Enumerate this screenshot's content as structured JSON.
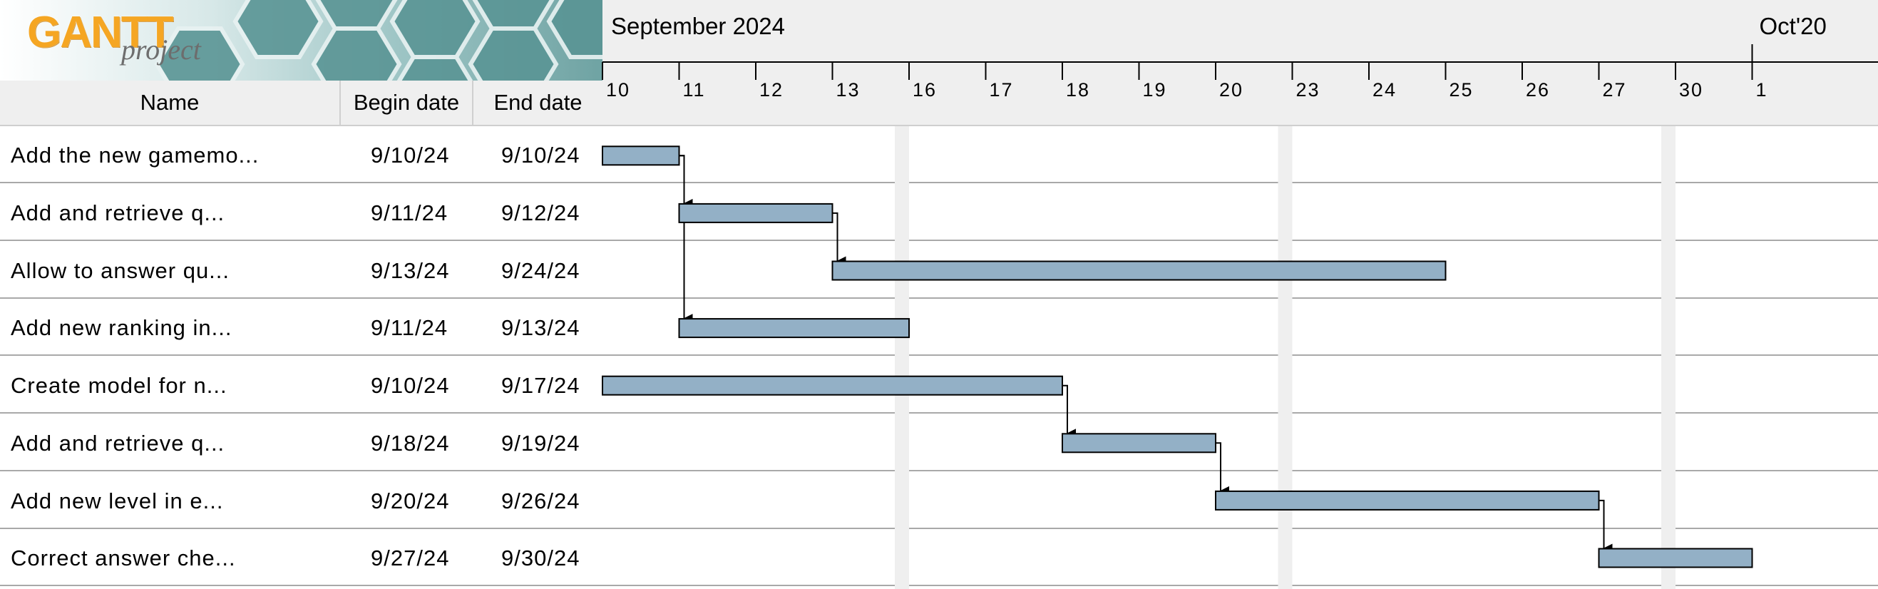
{
  "logo": {
    "brand": "GANTT",
    "sub": "project"
  },
  "table": {
    "columns": {
      "name": "Name",
      "begin": "Begin date",
      "end": "End date"
    },
    "rows": [
      {
        "name": "Add the new gamemo...",
        "begin": "9/10/24",
        "end": "9/10/24"
      },
      {
        "name": "Add and retrieve q...",
        "begin": "9/11/24",
        "end": "9/12/24"
      },
      {
        "name": "Allow to answer qu...",
        "begin": "9/13/24",
        "end": "9/24/24"
      },
      {
        "name": "Add new ranking in...",
        "begin": "9/11/24",
        "end": "9/13/24"
      },
      {
        "name": "Create model for n...",
        "begin": "9/10/24",
        "end": "9/17/24"
      },
      {
        "name": "Add and retrieve q...",
        "begin": "9/18/24",
        "end": "9/19/24"
      },
      {
        "name": "Add new level in e...",
        "begin": "9/20/24",
        "end": "9/26/24"
      },
      {
        "name": "Correct answer che...",
        "begin": "9/27/24",
        "end": "9/30/24"
      }
    ]
  },
  "timeline": {
    "months": [
      "September 2024",
      "Oct'20"
    ],
    "days": [
      "10",
      "11",
      "12",
      "13",
      "16",
      "17",
      "18",
      "19",
      "20",
      "23",
      "24",
      "25",
      "26",
      "27",
      "30",
      "1"
    ]
  },
  "chart_data": {
    "type": "gantt",
    "tasks": [
      {
        "name": "Add the new gamemo...",
        "start_day_index": 0,
        "end_day_index": 1
      },
      {
        "name": "Add and retrieve q...",
        "start_day_index": 1,
        "end_day_index": 3
      },
      {
        "name": "Allow to answer qu...",
        "start_day_index": 3,
        "end_day_index": 11
      },
      {
        "name": "Add new ranking in...",
        "start_day_index": 1,
        "end_day_index": 4
      },
      {
        "name": "Create model for n...",
        "start_day_index": 0,
        "end_day_index": 6
      },
      {
        "name": "Add and retrieve q...",
        "start_day_index": 6,
        "end_day_index": 8
      },
      {
        "name": "Add new level in e...",
        "start_day_index": 8,
        "end_day_index": 13
      },
      {
        "name": "Correct answer che...",
        "start_day_index": 13,
        "end_day_index": 15
      }
    ],
    "dependencies": [
      {
        "from": 0,
        "to": 1
      },
      {
        "from": 0,
        "to": 3
      },
      {
        "from": 1,
        "to": 2
      },
      {
        "from": 4,
        "to": 5
      },
      {
        "from": 5,
        "to": 6
      },
      {
        "from": 6,
        "to": 7
      }
    ],
    "colors": {
      "bar": "#93b0c6",
      "bar_border": "#000000",
      "weekend": "#efefef",
      "header_bg": "#efefef"
    }
  }
}
